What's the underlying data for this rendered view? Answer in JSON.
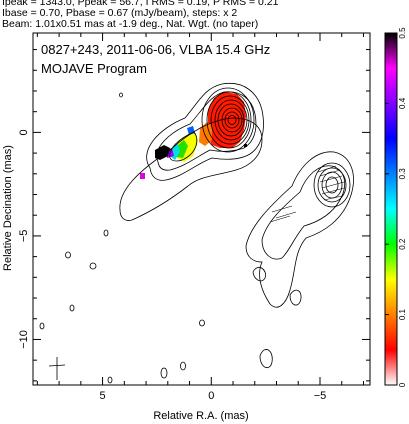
{
  "header": {
    "line1": "Ipeak = 1343.0, Ppeak = 56.7, I RMS = 0.19, P RMS = 0.21",
    "line2": "Ibase = 0.70, Pbase = 0.67 (mJy/beam), steps: x 2",
    "line3": "Beam: 1.01x0.51 mas at -1.9 deg., Nat. Wgt. (no taper)"
  },
  "chart_data": {
    "type": "heatmap",
    "title": "0827+243, 2011-06-06, VLBA 15.4 GHz",
    "subtitle": "MOJAVE Program",
    "xlabel": "Relative R.A. (mas)",
    "ylabel": "Relative Decination (mas)",
    "xlim": [
      8.2,
      -7.3
    ],
    "ylim": [
      -12.2,
      4.8
    ],
    "xticks": [
      5,
      0,
      -5
    ],
    "yticks": [
      0,
      -5,
      -10
    ],
    "colorbar": {
      "min": 0,
      "max": 0.5,
      "ticks": [
        0,
        0.1,
        0.2,
        0.3,
        0.4,
        0.5
      ],
      "colors": [
        "#ffffff",
        "#ff0000",
        "#ff8000",
        "#ffff00",
        "#00ff00",
        "#00ffff",
        "#0080ff",
        "#0000ff",
        "#8000ff",
        "#ff00ff",
        "#000000"
      ]
    },
    "core_position": [
      0.1,
      0.1
    ],
    "secondary_component_position": [
      -4.9,
      -2.8
    ],
    "contour_base_mJy_per_beam": 0.7,
    "contour_step_factor": 2
  }
}
